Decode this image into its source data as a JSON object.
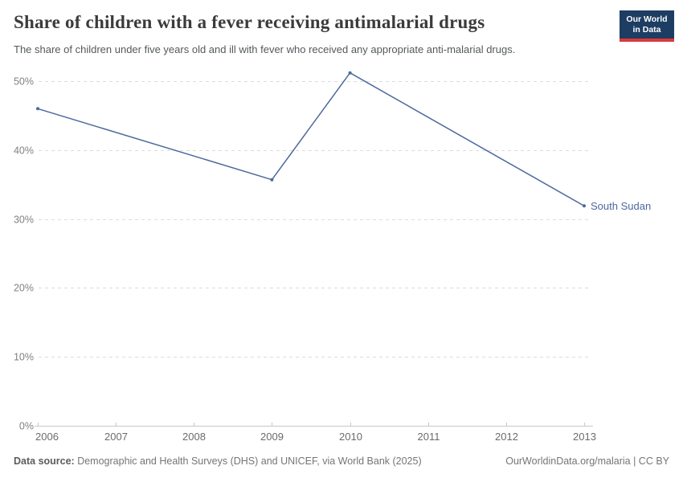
{
  "header": {
    "title": "Share of children with a fever receiving antimalarial drugs",
    "subtitle": "The share of children under five years old and ill with fever who received any appropriate anti-malarial drugs.",
    "logo": {
      "line1": "Our World",
      "line2": "in Data",
      "background_color": "#1d3d63",
      "accent_color": "#dc3a3c"
    }
  },
  "chart_data": {
    "type": "line",
    "title": "Share of children with a fever receiving antimalarial drugs",
    "xlabel": "",
    "ylabel": "",
    "x_ticks": [
      2006,
      2007,
      2008,
      2009,
      2010,
      2011,
      2012,
      2013
    ],
    "y_ticks": [
      0,
      10,
      20,
      30,
      40,
      50
    ],
    "y_tick_suffix": "%",
    "xlim": [
      2006,
      2013
    ],
    "ylim": [
      0,
      50
    ],
    "grid": "horizontal-dashed",
    "legend_position": "end-of-line-label",
    "series": [
      {
        "name": "South Sudan",
        "color": "#4c6a9c",
        "points": [
          {
            "x": 2006,
            "y": 46.0
          },
          {
            "x": 2009,
            "y": 35.7
          },
          {
            "x": 2010,
            "y": 51.2
          },
          {
            "x": 2013,
            "y": 31.9
          }
        ]
      }
    ],
    "colors": {
      "gridline": "#dcdcdc",
      "axis_line": "#c8c8c8",
      "y_tick_label": "#818181",
      "x_tick_label": "#6b6b6b"
    }
  },
  "footer": {
    "source_label": "Data source:",
    "source_text": " Demographic and Health Surveys (DHS) and UNICEF, via World Bank (2025)",
    "attribution": "OurWorldinData.org/malaria | CC BY"
  }
}
